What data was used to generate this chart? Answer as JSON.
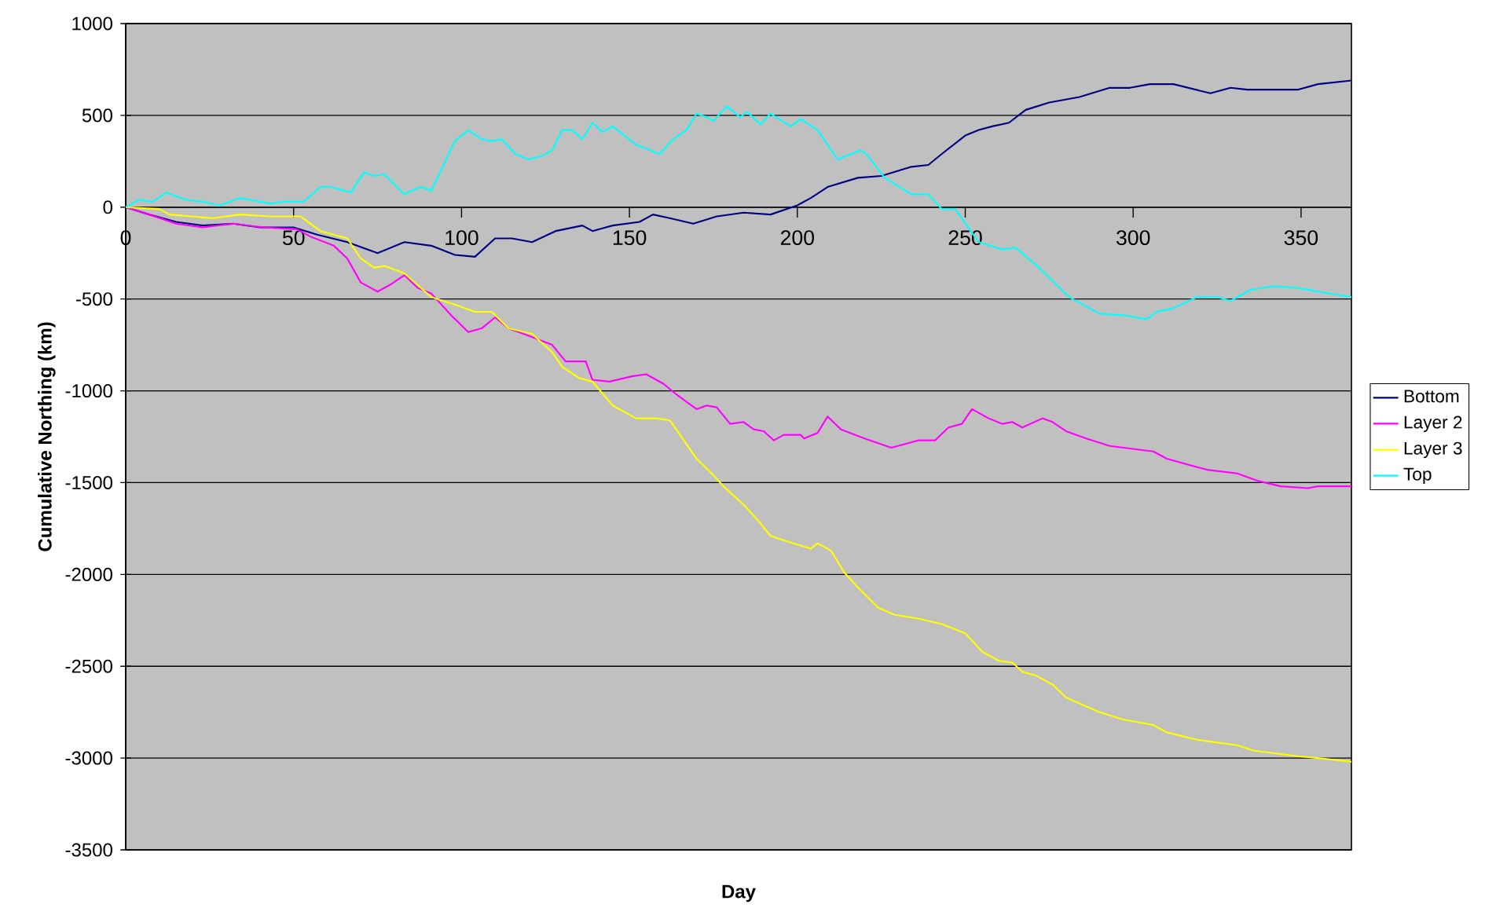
{
  "chart_data": {
    "type": "line",
    "xlabel": "Day",
    "ylabel": "Cumulative Northing (km)",
    "xlim": [
      0,
      365
    ],
    "ylim": [
      -3500,
      1000
    ],
    "xticks": [
      0,
      50,
      100,
      150,
      200,
      250,
      300,
      350
    ],
    "yticks": [
      -3500,
      -3000,
      -2500,
      -2000,
      -1500,
      -1000,
      -500,
      0,
      500,
      1000
    ],
    "grid": "y",
    "legend": "right",
    "marker": "none",
    "line_style": "solid",
    "series": [
      {
        "name": "Bottom",
        "color": "#000080",
        "x": [
          0,
          7,
          15,
          23,
          32,
          40,
          50,
          57,
          66,
          75,
          83,
          91,
          98,
          104,
          110,
          115,
          121,
          128,
          136,
          139,
          145,
          153,
          157,
          162,
          169,
          176,
          184,
          192,
          200,
          204,
          209,
          218,
          225,
          234,
          239,
          243,
          250,
          254,
          258,
          263,
          268,
          275,
          284,
          293,
          299,
          305,
          312,
          323,
          329,
          334,
          342,
          349,
          355,
          365
        ],
        "values": [
          0,
          -40,
          -80,
          -100,
          -90,
          -110,
          -110,
          -150,
          -190,
          -250,
          -190,
          -210,
          -260,
          -270,
          -170,
          -170,
          -190,
          -130,
          -100,
          -130,
          -100,
          -80,
          -40,
          -60,
          -90,
          -50,
          -30,
          -40,
          10,
          50,
          110,
          160,
          170,
          220,
          230,
          290,
          390,
          420,
          440,
          460,
          530,
          570,
          600,
          650,
          650,
          670,
          670,
          620,
          650,
          640,
          640,
          640,
          670,
          690
        ]
      },
      {
        "name": "Layer 2",
        "color": "#ff00ff",
        "x": [
          0,
          7,
          15,
          23,
          32,
          41,
          51,
          55,
          62,
          66,
          70,
          75,
          79,
          83,
          87,
          91,
          97,
          102,
          106,
          110,
          114,
          120,
          127,
          131,
          137,
          139,
          144,
          151,
          155,
          160,
          164,
          170,
          173,
          176,
          180,
          184,
          187,
          190,
          193,
          196,
          201,
          202,
          206,
          209,
          213,
          220,
          228,
          236,
          241,
          245,
          249,
          252,
          257,
          261,
          264,
          267,
          273,
          276,
          280,
          286,
          293,
          306,
          310,
          322,
          331,
          337,
          344,
          352,
          355,
          365
        ],
        "values": [
          0,
          -40,
          -90,
          -110,
          -90,
          -110,
          -120,
          -160,
          -210,
          -280,
          -410,
          -460,
          -420,
          -370,
          -440,
          -470,
          -590,
          -680,
          -660,
          -600,
          -660,
          -700,
          -750,
          -840,
          -840,
          -940,
          -950,
          -920,
          -910,
          -960,
          -1020,
          -1100,
          -1080,
          -1090,
          -1180,
          -1170,
          -1210,
          -1220,
          -1270,
          -1240,
          -1240,
          -1260,
          -1230,
          -1140,
          -1210,
          -1260,
          -1310,
          -1270,
          -1270,
          -1200,
          -1180,
          -1100,
          -1150,
          -1180,
          -1170,
          -1200,
          -1150,
          -1170,
          -1220,
          -1260,
          -1300,
          -1330,
          -1370,
          -1430,
          -1450,
          -1490,
          -1520,
          -1530,
          -1520,
          -1520
        ]
      },
      {
        "name": "Layer 3",
        "color": "#ffff00",
        "x": [
          0,
          10,
          13,
          26,
          34,
          43,
          52,
          58,
          66,
          70,
          74,
          77,
          83,
          91,
          98,
          104,
          109,
          114,
          121,
          127,
          130,
          135,
          139,
          145,
          152,
          158,
          162,
          170,
          175,
          178,
          184,
          188,
          192,
          197,
          204,
          206,
          210,
          214,
          218,
          224,
          229,
          236,
          243,
          250,
          255,
          260,
          264,
          267,
          271,
          276,
          280,
          290,
          297,
          306,
          310,
          319,
          331,
          336,
          349,
          355,
          365
        ],
        "values": [
          0,
          -10,
          -40,
          -60,
          -40,
          -50,
          -50,
          -130,
          -170,
          -280,
          -330,
          -320,
          -360,
          -490,
          -530,
          -570,
          -570,
          -660,
          -690,
          -790,
          -870,
          -930,
          -950,
          -1080,
          -1150,
          -1150,
          -1160,
          -1370,
          -1460,
          -1520,
          -1620,
          -1700,
          -1790,
          -1820,
          -1860,
          -1830,
          -1870,
          -1990,
          -2070,
          -2180,
          -2220,
          -2240,
          -2270,
          -2320,
          -2420,
          -2470,
          -2480,
          -2530,
          -2550,
          -2600,
          -2670,
          -2750,
          -2790,
          -2820,
          -2860,
          -2900,
          -2930,
          -2960,
          -2990,
          -3000,
          -3020
        ]
      },
      {
        "name": "Top",
        "color": "#00ffff",
        "x": [
          0,
          4,
          8,
          12,
          18,
          23,
          28,
          34,
          43,
          47,
          53,
          58,
          61,
          67,
          71,
          74,
          77,
          83,
          85,
          88,
          91,
          98,
          102,
          106,
          109,
          112,
          116,
          120,
          124,
          127,
          130,
          133,
          136,
          139,
          142,
          145,
          152,
          159,
          163,
          167,
          170,
          173,
          175,
          179,
          183,
          185,
          189,
          192,
          198,
          201,
          206,
          212,
          216,
          219,
          221,
          226,
          234,
          239,
          243,
          247,
          254,
          261,
          265,
          272,
          281,
          290,
          298,
          304,
          307,
          312,
          319,
          325,
          329,
          335,
          342,
          349,
          355,
          365
        ],
        "values": [
          0,
          40,
          30,
          80,
          40,
          30,
          10,
          50,
          20,
          30,
          30,
          110,
          110,
          80,
          190,
          170,
          180,
          70,
          90,
          110,
          90,
          360,
          420,
          370,
          360,
          370,
          290,
          260,
          280,
          310,
          420,
          420,
          370,
          460,
          410,
          440,
          340,
          290,
          370,
          420,
          510,
          490,
          470,
          550,
          490,
          520,
          450,
          510,
          440,
          480,
          420,
          260,
          290,
          310,
          280,
          160,
          70,
          70,
          -10,
          -10,
          -190,
          -230,
          -220,
          -330,
          -490,
          -580,
          -590,
          -610,
          -570,
          -550,
          -490,
          -490,
          -510,
          -450,
          -430,
          -440,
          -460,
          -490
        ]
      }
    ]
  }
}
